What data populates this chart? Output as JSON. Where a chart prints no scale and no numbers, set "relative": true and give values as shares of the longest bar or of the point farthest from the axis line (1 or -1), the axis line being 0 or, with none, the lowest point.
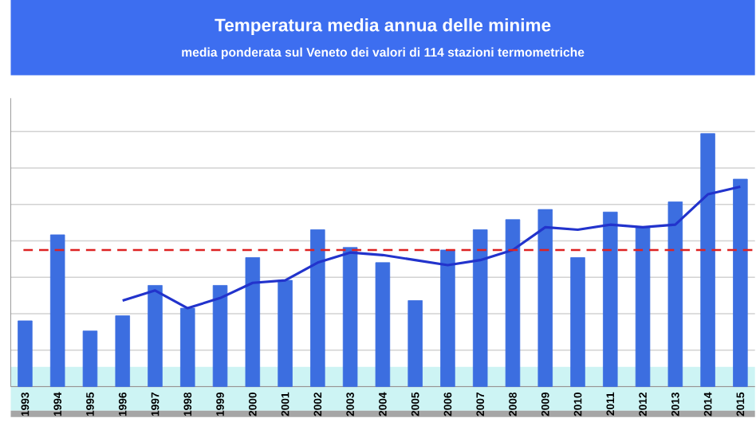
{
  "chart_data": {
    "type": "bar",
    "title": "Temperatura media annua delle minime",
    "subtitle": "media ponderata sul Veneto dei valori di 114 stazioni termometriche",
    "relative": true,
    "grid": "y",
    "categories": [
      "1993",
      "1994",
      "1995",
      "1996",
      "1997",
      "1998",
      "1999",
      "2000",
      "2001",
      "2002",
      "2003",
      "2004",
      "2005",
      "2006",
      "2007",
      "2008",
      "2009",
      "2010",
      "2011",
      "2012",
      "2013",
      "2014",
      "2015"
    ],
    "series": [
      {
        "color": "#3c6ee0",
        "values": [
          0.26,
          0.6,
          0.22,
          0.28,
          0.4,
          0.31,
          0.4,
          0.51,
          0.42,
          0.62,
          0.55,
          0.49,
          0.34,
          0.54,
          0.62,
          0.66,
          0.7,
          0.51,
          0.69,
          0.63,
          0.73,
          1,
          0.82
        ]
      },
      {
        "type": "line",
        "color": "#2233cc",
        "values": [
          null,
          null,
          null,
          0.34,
          0.38,
          0.31,
          0.35,
          0.41,
          0.42,
          0.49,
          0.53,
          0.52,
          0.5,
          0.48,
          0.5,
          0.54,
          0.63,
          0.62,
          0.64,
          0.63,
          0.64,
          0.76,
          0.79
        ]
      }
    ],
    "ref_lines": [
      {
        "axis": "y",
        "value": 0.54,
        "color": "#dd2222",
        "line_style": "dashed"
      }
    ]
  }
}
